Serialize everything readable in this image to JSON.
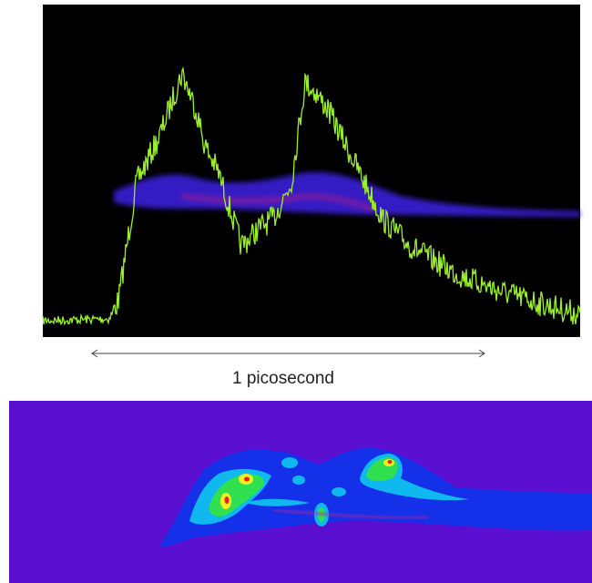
{
  "annotation": {
    "label": "1 picosecond"
  }
}
